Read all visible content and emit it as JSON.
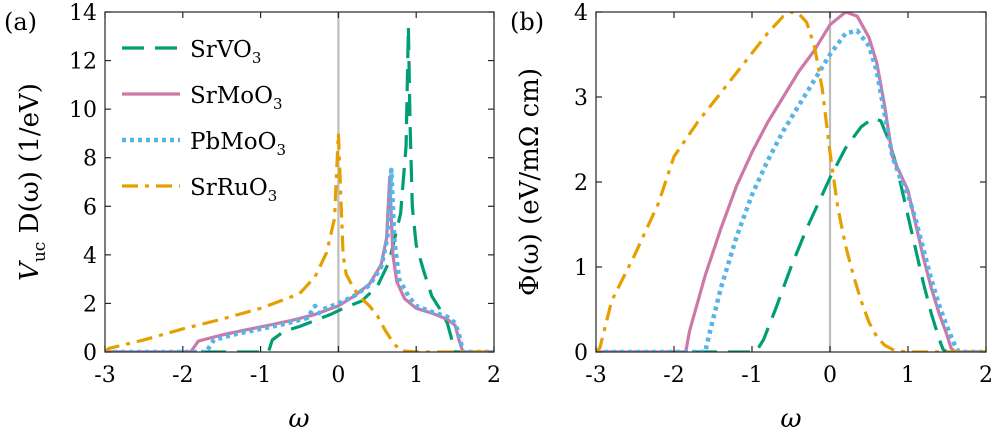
{
  "chart_data": [
    {
      "type": "line",
      "panel_label": "(a)",
      "xlabel": "ω",
      "ylabel": "V_uc D(ω) (1/eV)",
      "ylabel_parts": {
        "main": "V",
        "sub": "uc",
        "rest": " D(ω)  (1/eV)"
      },
      "xlim": [
        -3,
        2
      ],
      "ylim": [
        0,
        14
      ],
      "xticks": [
        -3,
        -2,
        -1,
        0,
        1,
        2
      ],
      "xtick_labels": [
        "-3",
        "-2",
        "-1",
        "0",
        "1",
        "2"
      ],
      "yticks": [
        0,
        2,
        4,
        6,
        8,
        10,
        12,
        14
      ],
      "ytick_labels": [
        "0",
        "2",
        "4",
        "6",
        "8",
        "10",
        "12",
        "14"
      ],
      "grid": false,
      "vline_x": 0,
      "legend_position": "top-left",
      "series": [
        {
          "name": "SrVO3",
          "label_base": "SrVO",
          "label_sub": "3",
          "color": "#009e73",
          "style": "dashed",
          "x": [
            -3,
            -0.9,
            -0.85,
            -0.7,
            -0.5,
            -0.3,
            -0.1,
            0,
            0.1,
            0.3,
            0.5,
            0.65,
            0.8,
            0.87,
            0.9,
            0.92,
            0.95,
            1.0,
            1.1,
            1.2,
            1.3,
            1.35,
            1.4,
            1.45,
            1.5,
            2
          ],
          "y": [
            0,
            0,
            0.5,
            0.85,
            1.05,
            1.3,
            1.55,
            1.7,
            1.85,
            2.1,
            2.7,
            3.7,
            5.7,
            8.5,
            13.4,
            9.5,
            6.0,
            4.4,
            3.3,
            2.3,
            1.8,
            1.5,
            1.2,
            0.6,
            0,
            0
          ]
        },
        {
          "name": "SrMoO3",
          "label_base": "SrMoO",
          "label_sub": "3",
          "color": "#cc79a7",
          "style": "solid",
          "x": [
            -3,
            -1.9,
            -1.8,
            -1.5,
            -1.2,
            -0.9,
            -0.6,
            -0.3,
            0,
            0.2,
            0.4,
            0.55,
            0.62,
            0.66,
            0.7,
            0.75,
            0.85,
            1.0,
            1.2,
            1.4,
            1.5,
            1.55,
            1.6,
            2
          ],
          "y": [
            0,
            0,
            0.45,
            0.7,
            0.9,
            1.1,
            1.3,
            1.55,
            1.9,
            2.3,
            2.8,
            3.6,
            4.7,
            7.2,
            4.0,
            2.9,
            2.2,
            1.8,
            1.6,
            1.35,
            1.1,
            0.5,
            0,
            0
          ]
        },
        {
          "name": "PbMoO3",
          "label_base": "PbMoO",
          "label_sub": "3",
          "color": "#56b4e9",
          "style": "dotted",
          "x": [
            -3,
            -1.7,
            -1.6,
            -1.3,
            -1.0,
            -0.7,
            -0.4,
            -0.3,
            -0.25,
            -0.2,
            0,
            0.2,
            0.4,
            0.55,
            0.63,
            0.68,
            0.72,
            0.78,
            0.9,
            1.0,
            1.2,
            1.4,
            1.5,
            1.56,
            1.6,
            2
          ],
          "y": [
            0,
            0,
            0.5,
            0.75,
            0.95,
            1.15,
            1.4,
            1.9,
            1.6,
            1.75,
            2.0,
            2.3,
            2.75,
            3.5,
            4.7,
            7.5,
            4.6,
            3.0,
            2.3,
            1.9,
            1.65,
            1.45,
            1.2,
            0.6,
            0,
            0
          ]
        },
        {
          "name": "SrRuO3",
          "label_base": "SrRuO",
          "label_sub": "3",
          "color": "#e69f00",
          "style": "dashdot",
          "x": [
            -3,
            -2.95,
            -2.5,
            -2.0,
            -1.5,
            -1.0,
            -0.5,
            -0.3,
            -0.15,
            -0.05,
            0.0,
            0.03,
            0.06,
            0.1,
            0.2,
            0.3,
            0.4,
            0.5,
            0.6,
            0.7,
            0.8,
            1.0,
            2
          ],
          "y": [
            0,
            0.15,
            0.5,
            0.95,
            1.35,
            1.8,
            2.4,
            3.1,
            4.1,
            5.5,
            9.0,
            6.5,
            4.0,
            3.2,
            2.6,
            2.2,
            1.9,
            1.5,
            0.9,
            0.4,
            0.05,
            0,
            0
          ]
        }
      ]
    },
    {
      "type": "line",
      "panel_label": "(b)",
      "xlabel": "ω",
      "ylabel": "Φ(ω) (eV/mΩ cm)",
      "ylabel_text": "Φ(ω)  (eV/mΩ cm)",
      "xlim": [
        -3,
        2
      ],
      "ylim": [
        0,
        4
      ],
      "xticks": [
        -3,
        -2,
        -1,
        0,
        1,
        2
      ],
      "xtick_labels": [
        "-3",
        "-2",
        "-1",
        "0",
        "1",
        "2"
      ],
      "yticks": [
        0,
        1,
        2,
        3,
        4
      ],
      "ytick_labels": [
        "0",
        "1",
        "2",
        "3",
        "4"
      ],
      "grid": false,
      "vline_x": 0,
      "series": [
        {
          "name": "SrVO3",
          "color": "#009e73",
          "style": "dashed",
          "x": [
            -3,
            -0.95,
            -0.85,
            -0.7,
            -0.5,
            -0.3,
            -0.1,
            0,
            0.2,
            0.4,
            0.55,
            0.65,
            0.75,
            0.85,
            1.0,
            1.1,
            1.2,
            1.3,
            1.4,
            1.45,
            1.5,
            2
          ],
          "y": [
            0,
            0,
            0.15,
            0.5,
            1.0,
            1.45,
            1.85,
            2.05,
            2.4,
            2.65,
            2.75,
            2.72,
            2.5,
            2.2,
            1.6,
            1.2,
            0.8,
            0.45,
            0.15,
            0.03,
            0,
            0
          ]
        },
        {
          "name": "SrMoO3",
          "color": "#cc79a7",
          "style": "solid",
          "x": [
            -3,
            -1.85,
            -1.8,
            -1.6,
            -1.4,
            -1.2,
            -1.0,
            -0.8,
            -0.6,
            -0.4,
            -0.2,
            0,
            0.2,
            0.35,
            0.5,
            0.6,
            0.7,
            0.8,
            0.9,
            1.0,
            1.1,
            1.2,
            1.3,
            1.4,
            1.5,
            1.55,
            1.6,
            2
          ],
          "y": [
            0,
            0,
            0.25,
            0.9,
            1.45,
            1.95,
            2.35,
            2.7,
            3.0,
            3.3,
            3.55,
            3.85,
            4.0,
            3.95,
            3.7,
            3.4,
            2.9,
            2.3,
            2.1,
            1.9,
            1.5,
            1.1,
            0.75,
            0.45,
            0.2,
            0.05,
            0,
            0
          ]
        },
        {
          "name": "PbMoO3",
          "color": "#56b4e9",
          "style": "dotted",
          "x": [
            -3,
            -1.6,
            -1.55,
            -1.4,
            -1.2,
            -1.0,
            -0.8,
            -0.6,
            -0.4,
            -0.2,
            0,
            0.2,
            0.35,
            0.5,
            0.6,
            0.7,
            0.8,
            0.9,
            1.0,
            1.1,
            1.2,
            1.3,
            1.4,
            1.5,
            1.6,
            1.65,
            2
          ],
          "y": [
            0,
            0,
            0.2,
            0.75,
            1.35,
            1.85,
            2.25,
            2.6,
            2.9,
            3.2,
            3.5,
            3.75,
            3.78,
            3.6,
            3.3,
            2.8,
            2.3,
            2.05,
            1.85,
            1.55,
            1.2,
            0.85,
            0.55,
            0.3,
            0.08,
            0,
            0
          ]
        },
        {
          "name": "SrRuO3",
          "color": "#e69f00",
          "style": "dashdot",
          "x": [
            -3,
            -2.95,
            -2.8,
            -2.5,
            -2.2,
            -2.0,
            -1.7,
            -1.4,
            -1.1,
            -0.8,
            -0.6,
            -0.5,
            -0.4,
            -0.3,
            -0.2,
            -0.1,
            0,
            0.1,
            0.2,
            0.3,
            0.4,
            0.5,
            0.6,
            0.7,
            0.8,
            0.9,
            1.0,
            2
          ],
          "y": [
            0,
            0.05,
            0.6,
            1.15,
            1.75,
            2.3,
            2.7,
            3.05,
            3.4,
            3.75,
            3.95,
            4.0,
            3.98,
            3.88,
            3.6,
            3.1,
            2.35,
            1.7,
            1.25,
            0.9,
            0.6,
            0.35,
            0.18,
            0.08,
            0.03,
            0.01,
            0,
            0
          ]
        }
      ]
    }
  ]
}
